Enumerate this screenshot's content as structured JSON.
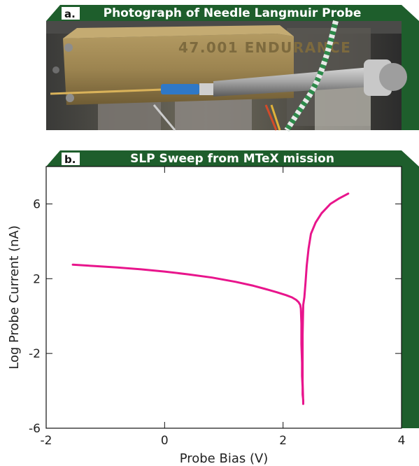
{
  "colors": {
    "banner": "#1e5e2c",
    "curve": "#e8158c",
    "badge": "#ffffff"
  },
  "panel_a": {
    "badge": "a.",
    "title": "Photograph of Needle Langmuir Probe",
    "stamp_text": "47.001 ENDURANCE"
  },
  "panel_b": {
    "badge": "b.",
    "title": "SLP Sweep from MTeX mission"
  },
  "chart_data": {
    "type": "line",
    "title": "SLP Sweep from MTeX mission",
    "xlabel": "Probe Bias (V)",
    "ylabel": "Log Probe Current (nA)",
    "xlim": [
      -2,
      4
    ],
    "ylim": [
      -6,
      8
    ],
    "xticks": [
      -2,
      0,
      2,
      4
    ],
    "yticks": [
      -6,
      -2,
      2,
      6
    ],
    "grid": false,
    "series": [
      {
        "color": "#e8158c",
        "x": [
          -1.55,
          -1.2,
          -0.8,
          -0.4,
          0,
          0.4,
          0.8,
          1.2,
          1.5,
          1.7,
          1.9,
          2.05,
          2.15,
          2.22,
          2.26,
          2.29,
          2.3,
          2.31,
          2.31,
          2.32,
          2.32,
          2.33,
          2.33,
          2.34,
          2.34,
          2.33,
          2.33,
          2.34,
          2.36,
          2.38,
          2.4,
          2.43,
          2.47,
          2.55,
          2.65,
          2.8,
          2.95,
          3.1
        ],
        "y": [
          2.75,
          2.68,
          2.6,
          2.5,
          2.38,
          2.23,
          2.06,
          1.83,
          1.62,
          1.45,
          1.27,
          1.12,
          1.0,
          0.87,
          0.75,
          0.6,
          0.4,
          -0.4,
          -1.5,
          -2.5,
          -3.2,
          -3.8,
          -4.2,
          -4.5,
          -4.7,
          -3.5,
          -1.0,
          0.6,
          1.0,
          1.8,
          2.7,
          3.6,
          4.4,
          5.0,
          5.5,
          6.0,
          6.3,
          6.55
        ]
      }
    ]
  }
}
